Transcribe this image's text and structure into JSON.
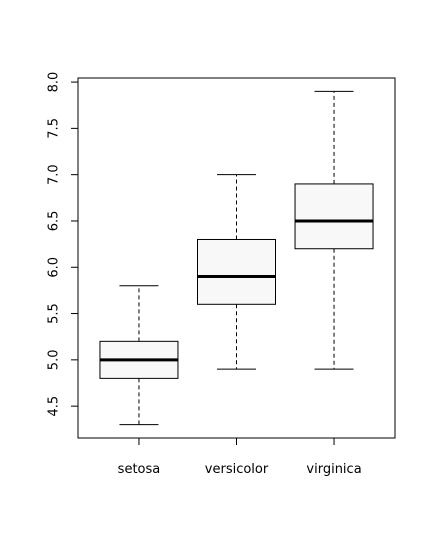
{
  "chart_data": {
    "type": "boxplot",
    "categories": [
      "setosa",
      "versicolor",
      "virginica"
    ],
    "whisker_low": [
      4.3,
      4.9,
      4.9
    ],
    "q1": [
      4.8,
      5.6,
      6.2
    ],
    "median": [
      5.0,
      5.9,
      6.5
    ],
    "q3": [
      5.2,
      6.3,
      6.9
    ],
    "whisker_high": [
      5.8,
      7.0,
      7.9
    ],
    "color": "#f8f8f8",
    "ylim": [
      4.156,
      8.044
    ],
    "yticks": [
      4.5,
      {
        "value": 5,
        "label": "5.0"
      },
      5.5,
      {
        "value": 6,
        "label": "6.0"
      },
      6.5,
      {
        "value": 7,
        "label": "7.0"
      },
      7.5,
      {
        "value": 8,
        "label": "8.0"
      }
    ]
  }
}
